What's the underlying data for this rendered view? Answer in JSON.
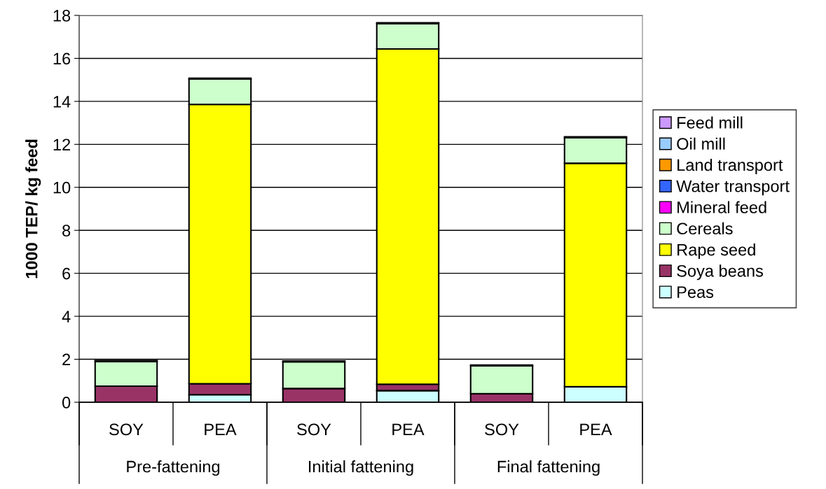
{
  "chart_data": {
    "type": "bar",
    "stacked": true,
    "ylabel": "1000 TEP/ kg feed",
    "categories": [
      "SOY",
      "PEA",
      "SOY",
      "PEA",
      "SOY",
      "PEA"
    ],
    "annotations": [
      "Pre-fattening",
      "Initial fattening",
      "Final fattening"
    ],
    "series": [
      {
        "name": "Peas",
        "color": "#ccffff",
        "values": [
          0,
          0.35,
          0,
          0.54,
          0,
          0.72
        ]
      },
      {
        "name": "Soya beans",
        "color": "#993366",
        "values": [
          0.75,
          0.51,
          0.64,
          0.3,
          0.4,
          0
        ]
      },
      {
        "name": "Rape seed",
        "color": "#ffff00",
        "values": [
          0,
          13.0,
          0,
          15.6,
          0,
          10.4
        ]
      },
      {
        "name": "Cereals",
        "color": "#ccffcc",
        "values": [
          1.15,
          1.18,
          1.24,
          1.18,
          1.29,
          1.19
        ]
      },
      {
        "name": "Mineral feed",
        "color": "#ff00ff",
        "values": [
          0,
          0,
          0,
          0,
          0,
          0
        ]
      },
      {
        "name": "Water transport",
        "color": "#3366ff",
        "values": [
          0,
          0,
          0,
          0,
          0,
          0
        ]
      },
      {
        "name": "Land transport",
        "color": "#ff9900",
        "values": [
          0.04,
          0.04,
          0.04,
          0.04,
          0.04,
          0.04
        ]
      },
      {
        "name": "Oil mill",
        "color": "#99ccff",
        "values": [
          0,
          0,
          0,
          0,
          0,
          0
        ]
      },
      {
        "name": "Feed mill",
        "color": "#cc99ff",
        "values": [
          0,
          0,
          0,
          0,
          0,
          0
        ]
      }
    ],
    "ylim": [
      0,
      18
    ],
    "yticks": [
      0,
      2,
      4,
      6,
      8,
      10,
      12,
      14,
      16,
      18
    ],
    "grid": "y",
    "legend": "right"
  }
}
